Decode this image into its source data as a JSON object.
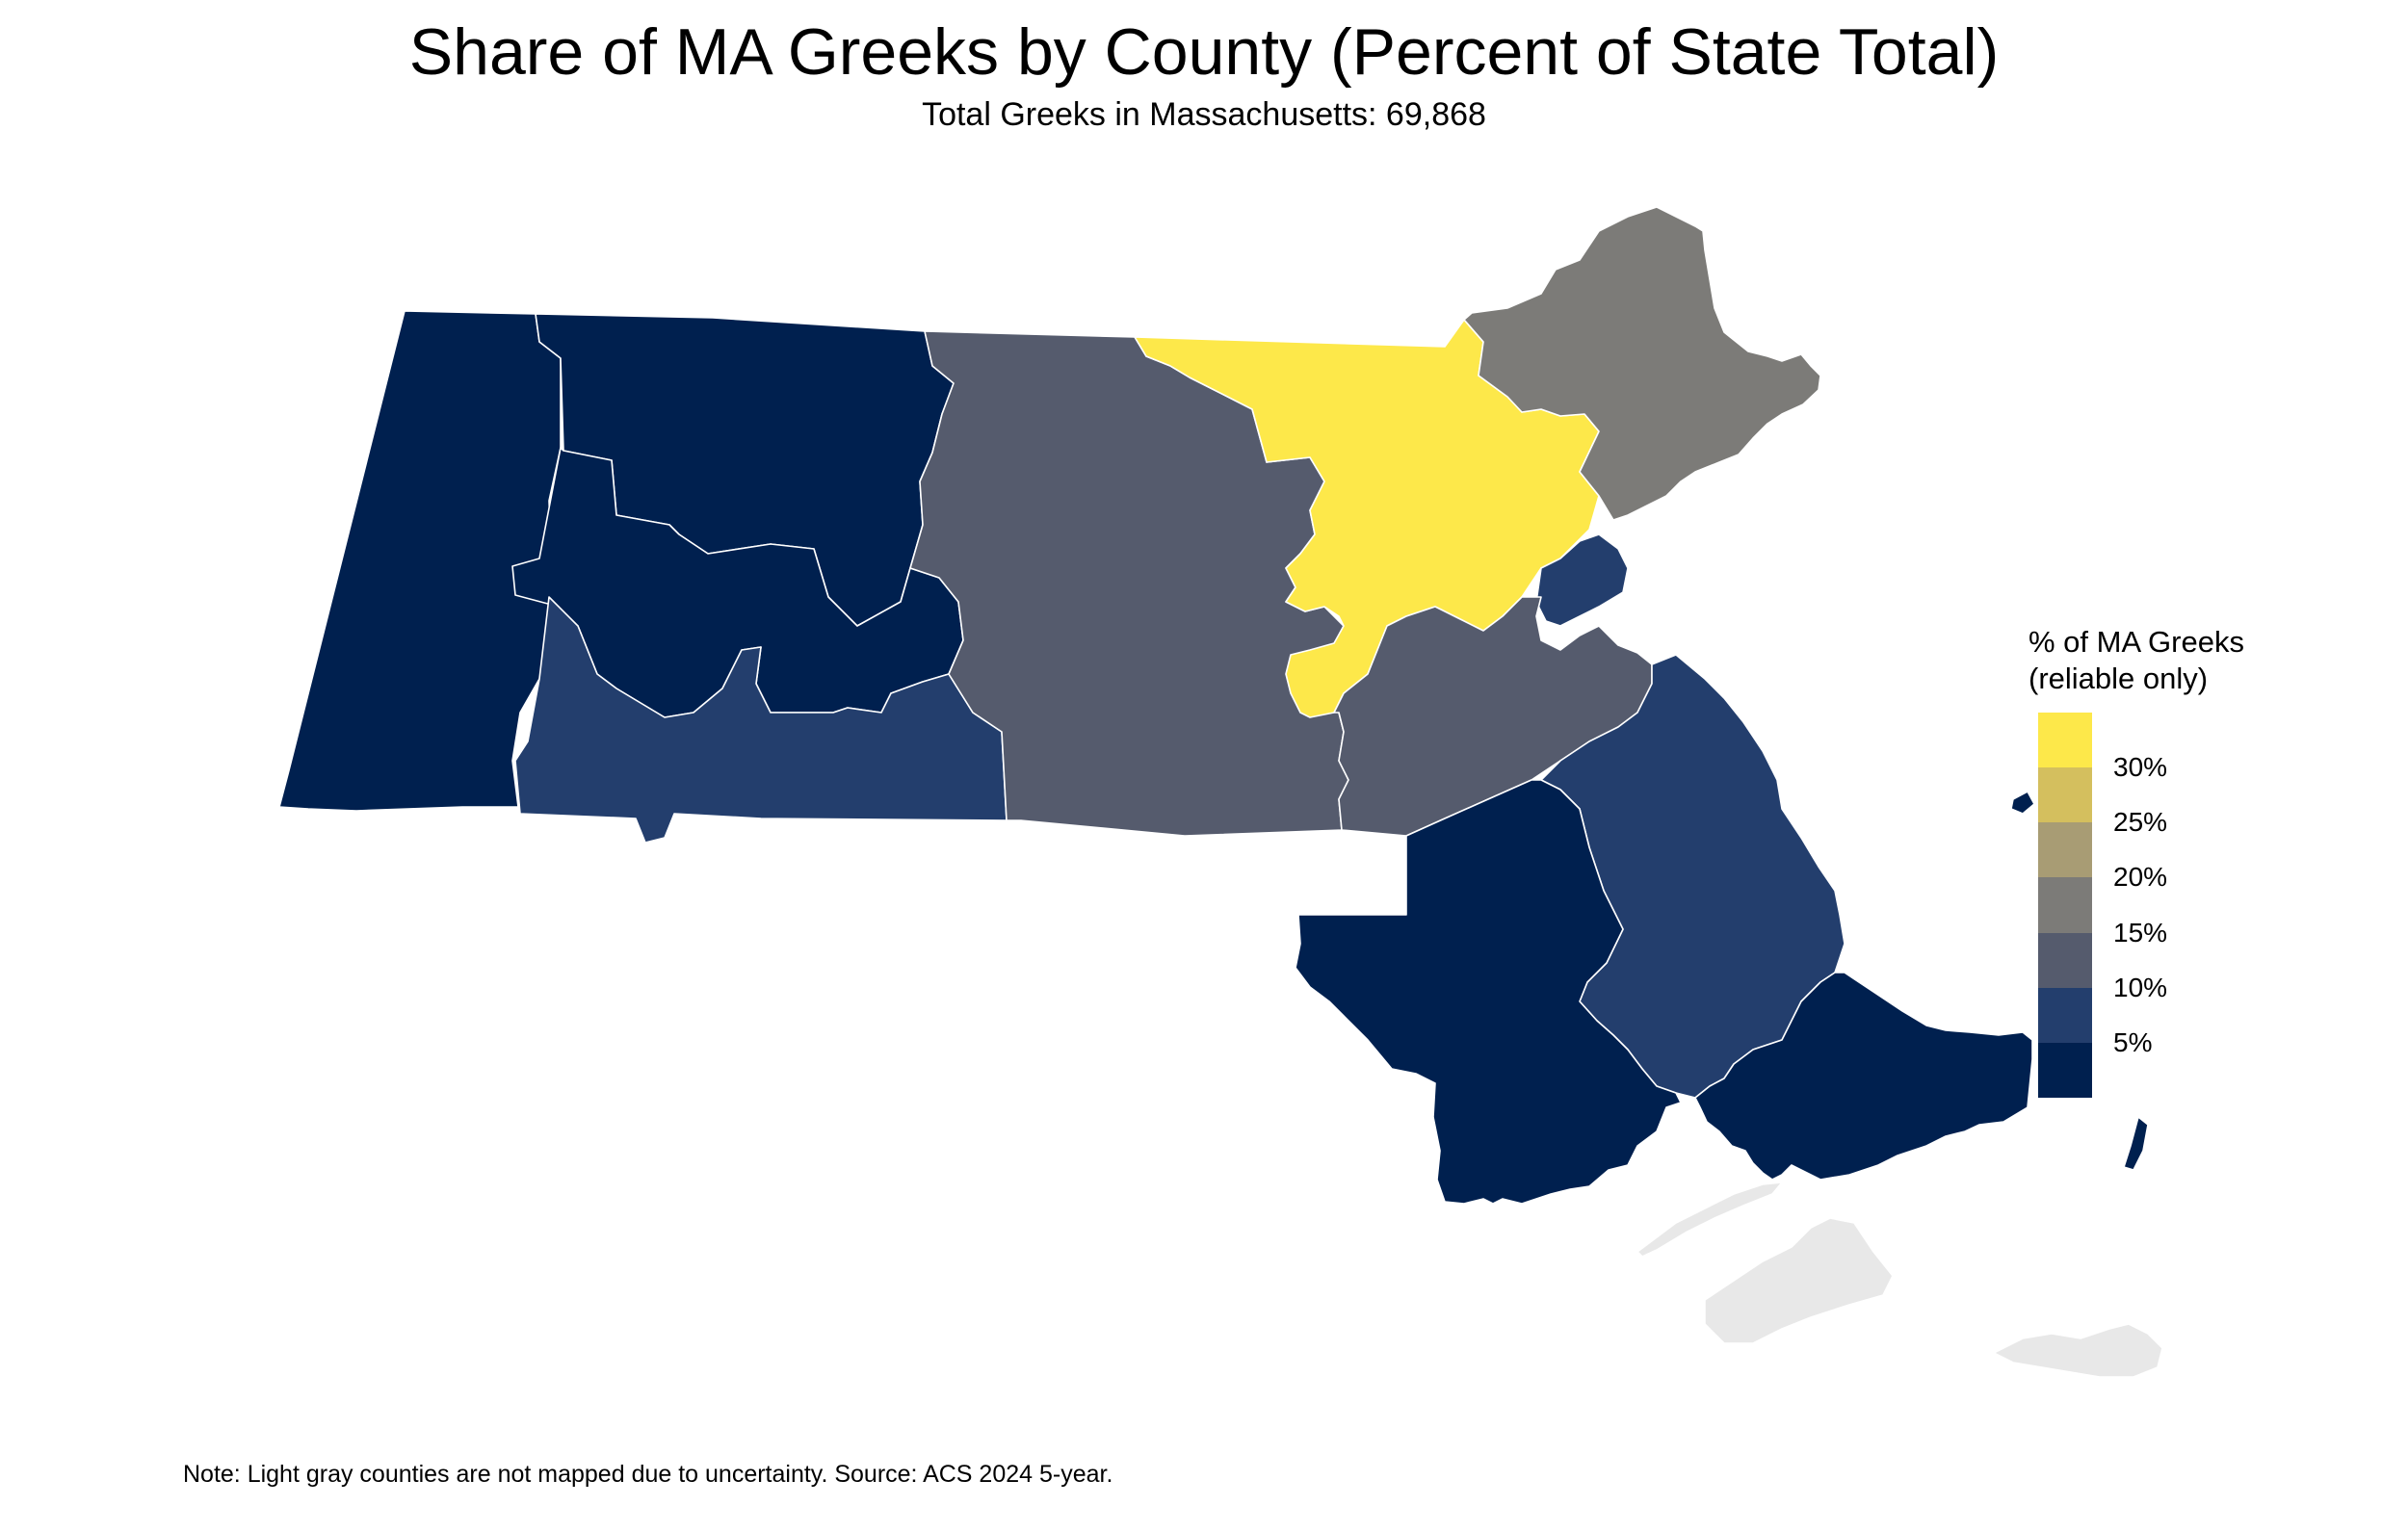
{
  "title": "Share of MA Greeks by County (Percent of State Total)",
  "subtitle": "Total Greeks in Massachusetts: 69,868",
  "note": "Note: Light gray counties are not mapped due to uncertainty. Source: ACS 2024 5-year.",
  "legend": {
    "title_line1": "% of MA Greeks",
    "title_line2": "(reliable only)",
    "ticks": [
      "30%",
      "25%",
      "20%",
      "15%",
      "10%",
      "5%"
    ],
    "colors_top_to_bottom": [
      "#FDE84A",
      "#D4BF5E",
      "#A89C74",
      "#7C7B78",
      "#555B6D",
      "#233E6D",
      "#00204F"
    ]
  },
  "colors": {
    "very_high": "#FDE84A",
    "high": "#7C7B78",
    "mid": "#555B6D",
    "low": "#233E6D",
    "very_low": "#00204F",
    "not_mapped": "#E8E8E8"
  },
  "chart_data": {
    "type": "choropleth",
    "state": "Massachusetts",
    "variable": "% of MA Greeks",
    "scale_ticks": [
      5,
      10,
      15,
      20,
      25,
      30
    ],
    "counties": [
      {
        "name": "Berkshire",
        "color_class": "very_low"
      },
      {
        "name": "Franklin",
        "color_class": "very_low"
      },
      {
        "name": "Hampshire",
        "color_class": "very_low"
      },
      {
        "name": "Hampden",
        "color_class": "low"
      },
      {
        "name": "Worcester",
        "color_class": "mid"
      },
      {
        "name": "Middlesex",
        "color_class": "very_high"
      },
      {
        "name": "Essex",
        "color_class": "high"
      },
      {
        "name": "Suffolk",
        "color_class": "low"
      },
      {
        "name": "Norfolk",
        "color_class": "mid"
      },
      {
        "name": "Plymouth",
        "color_class": "low"
      },
      {
        "name": "Bristol",
        "color_class": "very_low"
      },
      {
        "name": "Barnstable",
        "color_class": "very_low"
      },
      {
        "name": "Dukes",
        "color_class": "not_mapped"
      },
      {
        "name": "Nantucket",
        "color_class": "not_mapped"
      }
    ]
  }
}
